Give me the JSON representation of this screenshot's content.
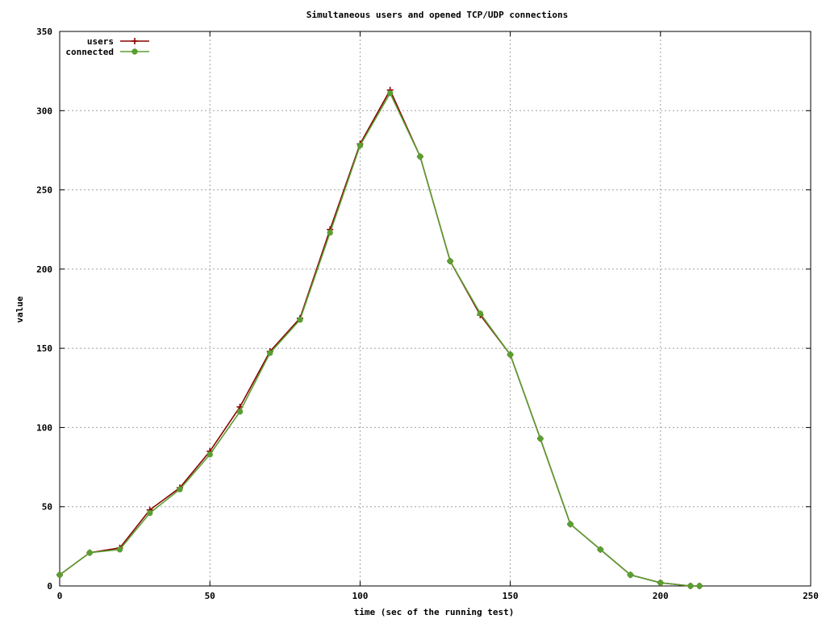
{
  "chart_data": {
    "type": "line",
    "title": "Simultaneous users and opened TCP/UDP connections",
    "xlabel": "time (sec of the running test)",
    "ylabel": "value",
    "xlim": [
      0,
      250
    ],
    "ylim": [
      0,
      350
    ],
    "xticks": [
      0,
      50,
      100,
      150,
      200,
      250
    ],
    "yticks": [
      0,
      50,
      100,
      150,
      200,
      250,
      300,
      350
    ],
    "grid": true,
    "legend_position": "top-left",
    "series": [
      {
        "name": "users",
        "color": "#8b0000",
        "marker": "plus",
        "x": [
          0,
          10,
          20,
          30,
          40,
          50,
          60,
          70,
          80,
          90,
          100,
          110,
          120,
          130,
          140,
          150,
          160,
          170,
          180,
          190,
          200,
          210,
          213
        ],
        "y": [
          7,
          21,
          24,
          48,
          62,
          85,
          113,
          148,
          169,
          225,
          279,
          313,
          271,
          205,
          171,
          146,
          93,
          39,
          23,
          7,
          2,
          0,
          0
        ]
      },
      {
        "name": "connected",
        "color": "#5a9e32",
        "marker": "filled-circle",
        "x": [
          0,
          10,
          20,
          30,
          40,
          50,
          60,
          70,
          80,
          90,
          100,
          110,
          120,
          130,
          140,
          150,
          160,
          170,
          180,
          190,
          200,
          210,
          213
        ],
        "y": [
          7,
          21,
          23,
          46,
          61,
          83,
          110,
          147,
          168,
          223,
          278,
          311,
          271,
          205,
          172,
          146,
          93,
          39,
          23,
          7,
          2,
          0,
          0
        ]
      }
    ]
  }
}
